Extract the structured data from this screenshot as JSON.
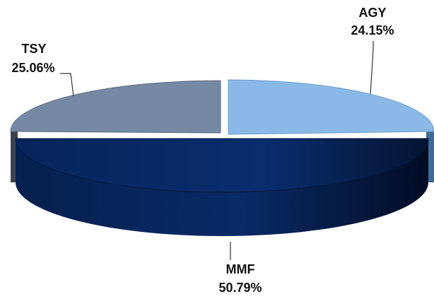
{
  "chart_data": {
    "type": "pie",
    "style": "3d-exploded",
    "title": "",
    "slices": [
      {
        "label": "AGY",
        "value": 24.15,
        "value_label": "24.15%",
        "color": "#8ab9e8"
      },
      {
        "label": "MMF",
        "value": 50.79,
        "value_label": "50.79%",
        "color": "#0a2a66"
      },
      {
        "label": "TSY",
        "value": 25.06,
        "value_label": "25.06%",
        "color": "#7689a4"
      }
    ],
    "legend": "none",
    "data_labels": "outside-with-leader-lines"
  }
}
